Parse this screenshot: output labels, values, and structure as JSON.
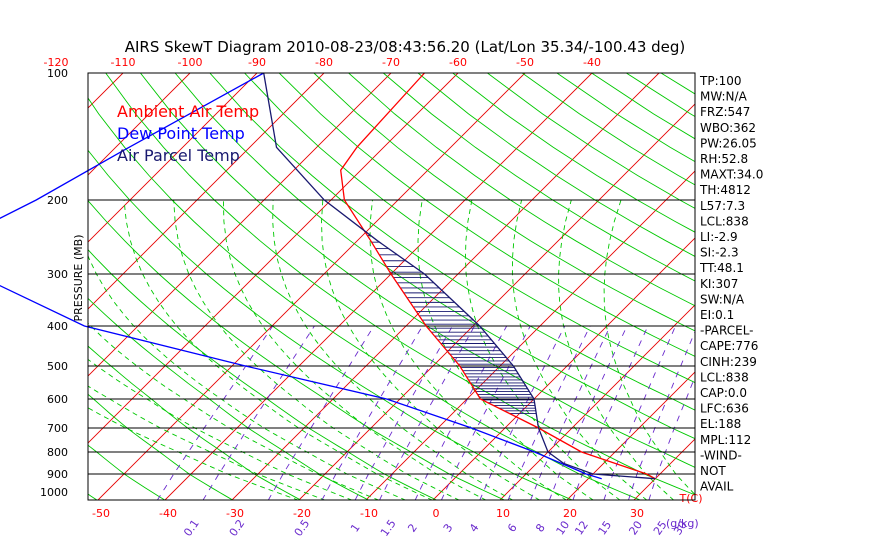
{
  "title": "AIRS SkewT Diagram 2010-08-23/08:43:56.20 (Lat/Lon 35.34/-100.43 deg)",
  "colors": {
    "temperature": "#ff0000",
    "dewpoint": "#0000ff",
    "parcel": "#191970",
    "dry_adiabat": "#00c800",
    "moist_adiabat": "#00c800",
    "mixing_ratio": "#6a2acd",
    "isotherm": "#e60000",
    "isobar": "#000000",
    "axis_text": "#ff0000"
  },
  "chart_data": {
    "type": "skew-t",
    "title": "AIRS SkewT Diagram 2010-08-23/08:43:56.20 (Lat/Lon 35.34/-100.43 deg)",
    "ylabel": "PRESSURE (MB)",
    "pressure_ticks": [
      100,
      200,
      300,
      400,
      500,
      600,
      700,
      800,
      900,
      1000
    ],
    "top_temp_ticks": [
      -120,
      -110,
      -100,
      -90,
      -80,
      -70,
      -60,
      -50,
      -40
    ],
    "bottom_temp_ticks": [
      -50,
      -40,
      -30,
      -20,
      -10,
      0,
      10,
      20,
      30
    ],
    "bottom_unit_label": "T(C)",
    "mixing_ratio_labels": [
      "0.1",
      "0.2",
      "0.5",
      "1",
      "1.5",
      "2",
      "3",
      "4",
      "6",
      "8",
      "10",
      "12",
      "15",
      "20",
      "25",
      "30"
    ],
    "mixing_ratio_unit": "(g/kg)",
    "legend": [
      "Ambient Air Temp",
      "Dew Point Temp",
      "Air Parcel Temp"
    ],
    "series": [
      {
        "name": "Ambient Air Temp",
        "points": [
          [
            100,
            -65
          ],
          [
            150,
            -64
          ],
          [
            170,
            -63
          ],
          [
            200,
            -58
          ],
          [
            250,
            -48
          ],
          [
            300,
            -40
          ],
          [
            400,
            -27
          ],
          [
            500,
            -16
          ],
          [
            600,
            -8
          ],
          [
            700,
            5
          ],
          [
            800,
            15
          ],
          [
            900,
            28
          ],
          [
            925,
            30
          ]
        ]
      },
      {
        "name": "Dew Point Temp",
        "points": [
          [
            100,
            -89
          ],
          [
            150,
            -98
          ],
          [
            200,
            -104
          ],
          [
            250,
            -110
          ],
          [
            300,
            -102
          ],
          [
            400,
            -78
          ],
          [
            500,
            -48
          ],
          [
            600,
            -22
          ],
          [
            700,
            -5
          ],
          [
            800,
            8
          ],
          [
            900,
            19
          ],
          [
            925,
            22
          ]
        ]
      },
      {
        "name": "Air Parcel Temp",
        "points": [
          [
            100,
            -89
          ],
          [
            150,
            -76
          ],
          [
            200,
            -61
          ],
          [
            250,
            -47
          ],
          [
            300,
            -35
          ],
          [
            400,
            -19
          ],
          [
            500,
            -8
          ],
          [
            600,
            0
          ],
          [
            700,
            5
          ],
          [
            800,
            10
          ],
          [
            850,
            14
          ],
          [
            900,
            20
          ],
          [
            925,
            30
          ]
        ]
      }
    ],
    "indices": [
      "TP:100",
      "MW:N/A",
      "FRZ:547",
      "WBO:362",
      "PW:26.05",
      "RH:52.8",
      "MAXT:34.0",
      "TH:4812",
      "L57:7.3",
      "LCL:838",
      "LI:-2.9",
      "SI:-2.3",
      "TT:48.1",
      "KI:307",
      "SW:N/A",
      "EI:0.1",
      "-PARCEL-",
      "CAPE:776",
      "CINH:239",
      "LCL:838",
      "CAP:0.0",
      "LFC:636",
      "EL:188",
      "MPL:112",
      "-WIND-",
      "NOT",
      "AVAIL"
    ]
  }
}
